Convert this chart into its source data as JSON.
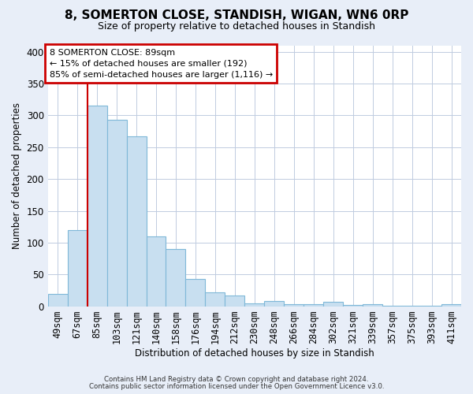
{
  "title": "8, SOMERTON CLOSE, STANDISH, WIGAN, WN6 0RP",
  "subtitle": "Size of property relative to detached houses in Standish",
  "xlabel": "Distribution of detached houses by size in Standish",
  "ylabel": "Number of detached properties",
  "bar_labels": [
    "49sqm",
    "67sqm",
    "85sqm",
    "103sqm",
    "121sqm",
    "140sqm",
    "158sqm",
    "176sqm",
    "194sqm",
    "212sqm",
    "230sqm",
    "248sqm",
    "266sqm",
    "284sqm",
    "302sqm",
    "321sqm",
    "339sqm",
    "357sqm",
    "375sqm",
    "393sqm",
    "411sqm"
  ],
  "bar_values": [
    20,
    120,
    315,
    293,
    267,
    110,
    90,
    43,
    22,
    17,
    5,
    9,
    4,
    3,
    7,
    2,
    3,
    1,
    1,
    1,
    3
  ],
  "bar_color": "#c8dff0",
  "bar_edge_color": "#7fb8d8",
  "reference_line_x_label": "85sqm",
  "ref_line_color": "#cc0000",
  "annotation_title": "8 SOMERTON CLOSE: 89sqm",
  "annotation_line1": "← 15% of detached houses are smaller (192)",
  "annotation_line2": "85% of semi-detached houses are larger (1,116) →",
  "annotation_box_color": "#ffffff",
  "annotation_box_edge": "#cc0000",
  "ylim": [
    0,
    410
  ],
  "yticks": [
    0,
    50,
    100,
    150,
    200,
    250,
    300,
    350,
    400
  ],
  "footer1": "Contains HM Land Registry data © Crown copyright and database right 2024.",
  "footer2": "Contains public sector information licensed under the Open Government Licence v3.0.",
  "bg_color": "#e8eef8",
  "plot_bg_color": "#ffffff",
  "grid_color": "#c0cce0"
}
